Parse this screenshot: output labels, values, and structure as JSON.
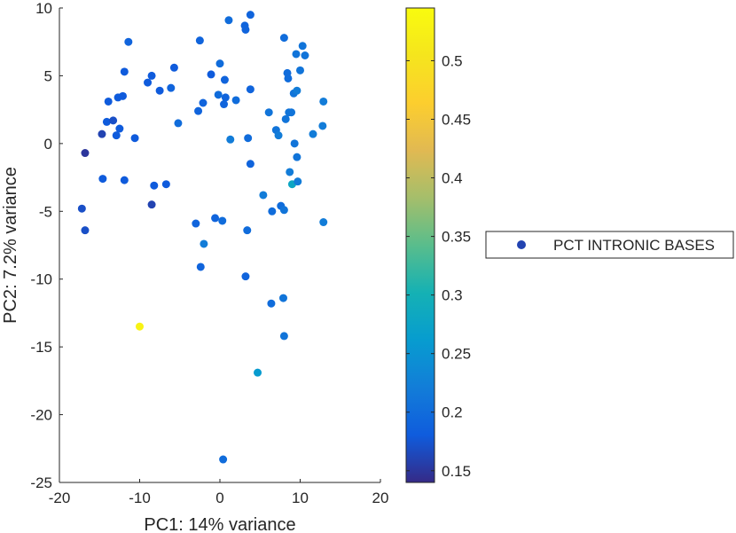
{
  "chart_data": {
    "type": "scatter",
    "title": "",
    "xlabel": "PC1: 14% variance",
    "ylabel": "PC2: 7.2% variance",
    "xlim": [
      -20,
      20
    ],
    "ylim": [
      -25,
      10
    ],
    "xticks": [
      -20,
      -10,
      0,
      10,
      20
    ],
    "yticks": [
      10,
      5,
      0,
      -5,
      -10,
      -15,
      -20,
      -25
    ],
    "grid": false,
    "legend": {
      "placement": "right",
      "entries": [
        "PCT INTRONIC BASES"
      ]
    },
    "colorbar": {
      "colormap": "parula",
      "range": [
        0.14,
        0.545
      ],
      "ticks": [
        0.15,
        0.2,
        0.25,
        0.3,
        0.35,
        0.4,
        0.45,
        0.5
      ],
      "tick_labels": [
        "0.15",
        "0.2",
        "0.25",
        "0.3",
        "0.35",
        "0.4",
        "0.45",
        "0.5"
      ]
    },
    "series": [
      {
        "name": "PCT INTRONIC BASES",
        "points": [
          {
            "x": -16.8,
            "y": -0.7,
            "c": 0.15
          },
          {
            "x": -17.2,
            "y": -4.8,
            "c": 0.17
          },
          {
            "x": -16.8,
            "y": -6.4,
            "c": 0.17
          },
          {
            "x": -14.7,
            "y": 0.7,
            "c": 0.16
          },
          {
            "x": -14.6,
            "y": -2.6,
            "c": 0.18
          },
          {
            "x": -14.1,
            "y": 1.6,
            "c": 0.18
          },
          {
            "x": -13.9,
            "y": 3.1,
            "c": 0.18
          },
          {
            "x": -13.3,
            "y": 1.7,
            "c": 0.17
          },
          {
            "x": -12.9,
            "y": 0.6,
            "c": 0.18
          },
          {
            "x": -12.7,
            "y": 3.4,
            "c": 0.18
          },
          {
            "x": -12.5,
            "y": 1.1,
            "c": 0.18
          },
          {
            "x": -12.1,
            "y": 3.5,
            "c": 0.18
          },
          {
            "x": -11.9,
            "y": 5.3,
            "c": 0.18
          },
          {
            "x": -11.9,
            "y": -2.7,
            "c": 0.18
          },
          {
            "x": -11.4,
            "y": 7.5,
            "c": 0.19
          },
          {
            "x": -10.6,
            "y": 0.4,
            "c": 0.18
          },
          {
            "x": -10.0,
            "y": -13.5,
            "c": 0.53
          },
          {
            "x": -9.0,
            "y": 4.5,
            "c": 0.18
          },
          {
            "x": -8.5,
            "y": 5.0,
            "c": 0.18
          },
          {
            "x": -8.5,
            "y": -4.5,
            "c": 0.16
          },
          {
            "x": -8.2,
            "y": -3.1,
            "c": 0.18
          },
          {
            "x": -7.5,
            "y": 3.9,
            "c": 0.18
          },
          {
            "x": -6.7,
            "y": -3.0,
            "c": 0.18
          },
          {
            "x": -6.1,
            "y": 4.1,
            "c": 0.19
          },
          {
            "x": -5.7,
            "y": 5.6,
            "c": 0.18
          },
          {
            "x": -5.2,
            "y": 1.5,
            "c": 0.2
          },
          {
            "x": -3.0,
            "y": -5.9,
            "c": 0.19
          },
          {
            "x": -2.7,
            "y": 2.4,
            "c": 0.19
          },
          {
            "x": -2.5,
            "y": 7.6,
            "c": 0.19
          },
          {
            "x": -2.4,
            "y": -9.1,
            "c": 0.19
          },
          {
            "x": -2.1,
            "y": 3.0,
            "c": 0.19
          },
          {
            "x": -2.0,
            "y": -7.4,
            "c": 0.22
          },
          {
            "x": -1.1,
            "y": 5.1,
            "c": 0.18
          },
          {
            "x": -0.6,
            "y": -5.5,
            "c": 0.19
          },
          {
            "x": -0.2,
            "y": 3.6,
            "c": 0.2
          },
          {
            "x": 0.0,
            "y": 5.9,
            "c": 0.2
          },
          {
            "x": 0.3,
            "y": -5.7,
            "c": 0.2
          },
          {
            "x": 0.4,
            "y": -23.3,
            "c": 0.2
          },
          {
            "x": 0.5,
            "y": 2.9,
            "c": 0.19
          },
          {
            "x": 0.6,
            "y": 4.7,
            "c": 0.19
          },
          {
            "x": 0.7,
            "y": 3.4,
            "c": 0.19
          },
          {
            "x": 1.1,
            "y": 9.1,
            "c": 0.2
          },
          {
            "x": 1.3,
            "y": 0.3,
            "c": 0.22
          },
          {
            "x": 2.0,
            "y": 3.2,
            "c": 0.2
          },
          {
            "x": 3.1,
            "y": 8.7,
            "c": 0.19
          },
          {
            "x": 3.2,
            "y": 8.4,
            "c": 0.19
          },
          {
            "x": 3.2,
            "y": -9.8,
            "c": 0.19
          },
          {
            "x": 3.4,
            "y": -6.4,
            "c": 0.2
          },
          {
            "x": 3.5,
            "y": 0.4,
            "c": 0.2
          },
          {
            "x": 3.8,
            "y": 9.5,
            "c": 0.19
          },
          {
            "x": 3.8,
            "y": 4.0,
            "c": 0.19
          },
          {
            "x": 3.8,
            "y": -1.5,
            "c": 0.19
          },
          {
            "x": 4.7,
            "y": -16.9,
            "c": 0.26
          },
          {
            "x": 5.4,
            "y": -3.8,
            "c": 0.22
          },
          {
            "x": 6.1,
            "y": 2.3,
            "c": 0.21
          },
          {
            "x": 6.4,
            "y": -11.8,
            "c": 0.2
          },
          {
            "x": 6.5,
            "y": -5.0,
            "c": 0.2
          },
          {
            "x": 7.0,
            "y": 1.0,
            "c": 0.21
          },
          {
            "x": 7.3,
            "y": 0.6,
            "c": 0.22
          },
          {
            "x": 7.6,
            "y": -4.6,
            "c": 0.2
          },
          {
            "x": 7.9,
            "y": -11.4,
            "c": 0.21
          },
          {
            "x": 8.0,
            "y": -4.9,
            "c": 0.21
          },
          {
            "x": 8.0,
            "y": 7.8,
            "c": 0.2
          },
          {
            "x": 8.0,
            "y": -14.2,
            "c": 0.21
          },
          {
            "x": 8.2,
            "y": 1.8,
            "c": 0.21
          },
          {
            "x": 8.4,
            "y": 5.2,
            "c": 0.2
          },
          {
            "x": 8.5,
            "y": 4.8,
            "c": 0.2
          },
          {
            "x": 8.6,
            "y": 2.3,
            "c": 0.21
          },
          {
            "x": 8.7,
            "y": -2.1,
            "c": 0.22
          },
          {
            "x": 8.9,
            "y": 2.3,
            "c": 0.21
          },
          {
            "x": 9.0,
            "y": -3.0,
            "c": 0.28
          },
          {
            "x": 9.2,
            "y": 3.7,
            "c": 0.21
          },
          {
            "x": 9.3,
            "y": 0.0,
            "c": 0.21
          },
          {
            "x": 9.5,
            "y": 6.6,
            "c": 0.21
          },
          {
            "x": 9.6,
            "y": -1.0,
            "c": 0.21
          },
          {
            "x": 9.6,
            "y": 3.9,
            "c": 0.22
          },
          {
            "x": 9.7,
            "y": -2.8,
            "c": 0.22
          },
          {
            "x": 10.0,
            "y": 5.4,
            "c": 0.21
          },
          {
            "x": 10.3,
            "y": 7.2,
            "c": 0.21
          },
          {
            "x": 10.6,
            "y": 6.5,
            "c": 0.21
          },
          {
            "x": 11.6,
            "y": 0.7,
            "c": 0.22
          },
          {
            "x": 12.8,
            "y": 1.3,
            "c": 0.22
          },
          {
            "x": 12.9,
            "y": 3.1,
            "c": 0.22
          },
          {
            "x": 12.9,
            "y": -5.8,
            "c": 0.22
          }
        ]
      }
    ]
  }
}
